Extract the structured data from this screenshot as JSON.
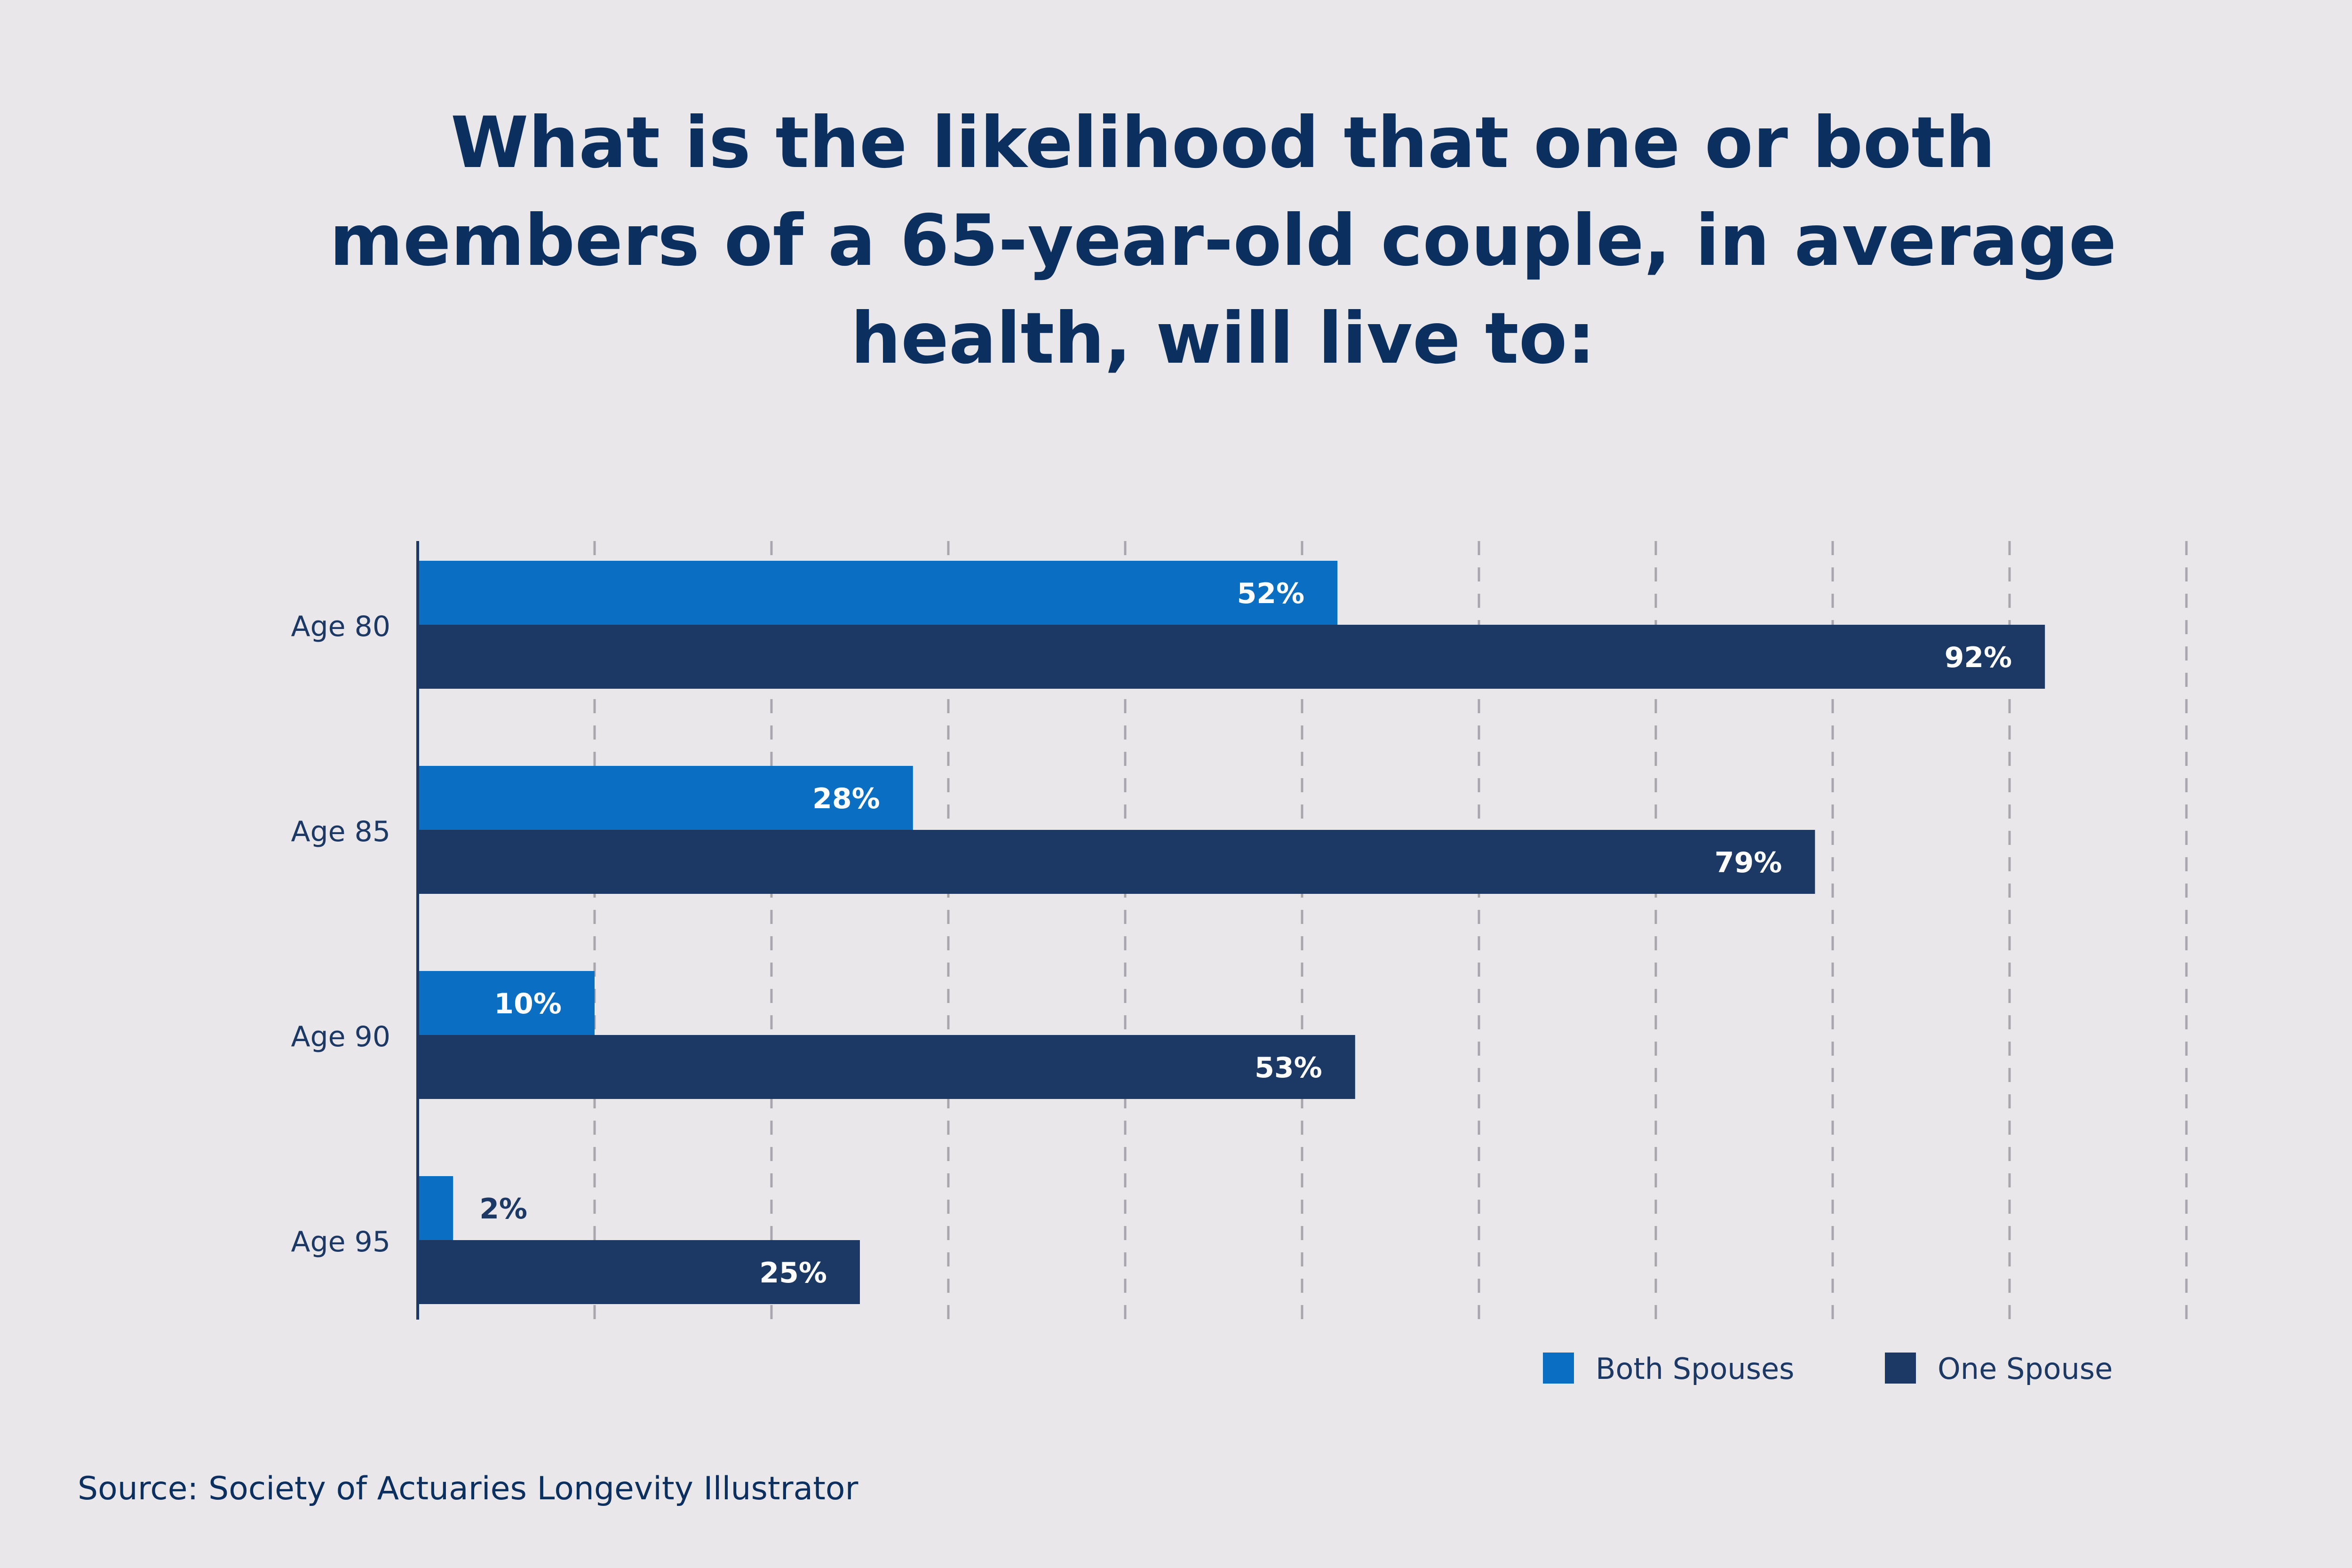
{
  "colors": {
    "background": "#e9e7e9",
    "title": "#0b2f5e",
    "both_spouses": "#0a6ec3",
    "one_spouse": "#1c3865",
    "axis": "#1c3865",
    "gridline": "#a9a7ad",
    "label_inside": "#ffffff",
    "label_outside": "#1c3865"
  },
  "chart_data": {
    "type": "bar",
    "orientation": "horizontal",
    "title": "What is the likelihood that one or both members of a 65-year-old couple, in average health, will live to:",
    "categories": [
      "Age 80",
      "Age 85",
      "Age 90",
      "Age 95"
    ],
    "series": [
      {
        "name": "Both Spouses",
        "values": [
          52,
          28,
          10,
          2
        ],
        "labels": [
          "52%",
          "28%",
          "10%",
          "2%"
        ]
      },
      {
        "name": "One Spouse",
        "values": [
          92,
          79,
          53,
          25
        ],
        "labels": [
          "92%",
          "79%",
          "53%",
          "25%"
        ]
      }
    ],
    "xlim": [
      0,
      100
    ],
    "grid": true,
    "legend": "bottom-right",
    "xlabel": "",
    "ylabel": ""
  },
  "source": "Source: Society of Actuaries Longevity Illustrator"
}
